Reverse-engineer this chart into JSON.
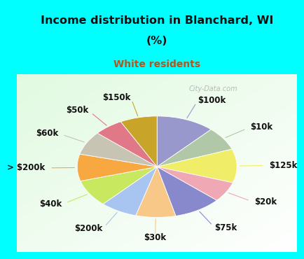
{
  "title_line1": "Income distribution in Blanchard, WI",
  "title_line2": "(%)",
  "subtitle": "White residents",
  "title_color": "#111111",
  "subtitle_color": "#b05820",
  "bg_cyan": "#00ffff",
  "labels": [
    "$100k",
    "$10k",
    "$125k",
    "$20k",
    "$75k",
    "$30k",
    "$200k",
    "$40k",
    "> $200k",
    "$60k",
    "$50k",
    "$150k"
  ],
  "values": [
    11.0,
    7.0,
    10.0,
    6.0,
    9.0,
    7.5,
    7.0,
    8.0,
    8.0,
    7.0,
    5.5,
    7.0
  ],
  "colors": [
    "#9898cc",
    "#b0c8a8",
    "#f0ee68",
    "#f0a8b4",
    "#8888cc",
    "#f8c888",
    "#a8c4f0",
    "#c8e860",
    "#f8a840",
    "#c8c4b4",
    "#e07888",
    "#c8a428"
  ],
  "label_fontsize": 8.5,
  "watermark": "City-Data.com"
}
